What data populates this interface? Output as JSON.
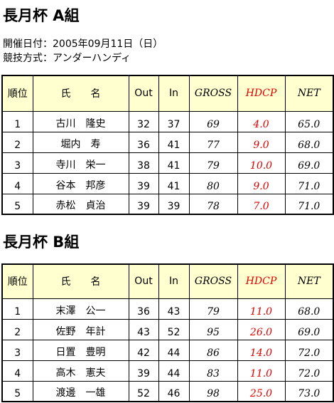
{
  "sections": [
    {
      "title": "長月杯 A組",
      "info": [
        "開催日付：2005年09月11日（日）",
        "競技方式：アンダーハンディ"
      ],
      "table": {
        "columns": [
          "順位",
          "氏　　名",
          "Out",
          "In",
          "GROSS",
          "HDCP",
          "NET"
        ],
        "rows": [
          [
            "1",
            "古川　隆史",
            "32",
            "37",
            "69",
            "4.0",
            "65.0"
          ],
          [
            "2",
            "堀内　寿",
            "36",
            "41",
            "77",
            "9.0",
            "68.0"
          ],
          [
            "3",
            "寺川　栄一",
            "38",
            "41",
            "79",
            "10.0",
            "69.0"
          ],
          [
            "4",
            "谷本　邦彦",
            "39",
            "41",
            "80",
            "9.0",
            "71.0"
          ],
          [
            "5",
            "赤松　貞治",
            "39",
            "39",
            "78",
            "7.0",
            "71.0"
          ]
        ]
      }
    },
    {
      "title": "長月杯 B組",
      "table": {
        "columns": [
          "順位",
          "氏　　名",
          "Out",
          "In",
          "GROSS",
          "HDCP",
          "NET"
        ],
        "rows": [
          [
            "1",
            "末澤　公一",
            "36",
            "43",
            "79",
            "11.0",
            "68.0"
          ],
          [
            "2",
            "佐野　年計",
            "43",
            "52",
            "95",
            "26.0",
            "69.0"
          ],
          [
            "3",
            "日置　豊明",
            "42",
            "44",
            "86",
            "14.0",
            "72.0"
          ],
          [
            "4",
            "高木　憲夫",
            "39",
            "44",
            "83",
            "11.0",
            "72.0"
          ],
          [
            "5",
            "渡邊　一雄",
            "52",
            "46",
            "98",
            "25.0",
            "73.0"
          ]
        ]
      }
    }
  ]
}
